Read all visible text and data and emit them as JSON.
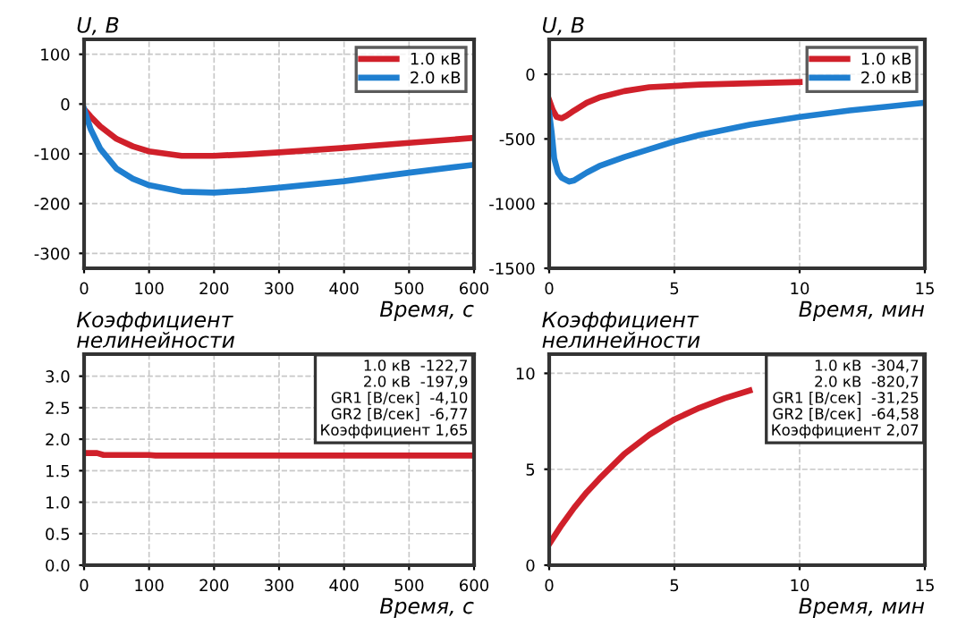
{
  "chart_data": [
    {
      "type": "line",
      "ylabel": "U, В",
      "xlabel": "Время, с",
      "xlim": [
        0,
        600
      ],
      "ylim": [
        -330,
        130
      ],
      "xticks": [
        0,
        100,
        200,
        300,
        400,
        500,
        600
      ],
      "yticks": [
        -300,
        -200,
        -100,
        0,
        100
      ],
      "grid": true,
      "legend": "top right",
      "series": [
        {
          "name": "1.0 кВ",
          "color": "#d0202a",
          "x": [
            0,
            10,
            25,
            50,
            75,
            100,
            150,
            200,
            250,
            300,
            400,
            500,
            600
          ],
          "values": [
            -10,
            -25,
            -45,
            -70,
            -85,
            -95,
            -104,
            -104,
            -101,
            -97,
            -88,
            -78,
            -68
          ]
        },
        {
          "name": "2.0 кВ",
          "color": "#1f7fd0",
          "x": [
            0,
            10,
            25,
            50,
            75,
            100,
            150,
            200,
            250,
            300,
            400,
            500,
            600
          ],
          "values": [
            -10,
            -50,
            -90,
            -130,
            -150,
            -163,
            -176,
            -178,
            -174,
            -168,
            -155,
            -138,
            -122
          ]
        }
      ]
    },
    {
      "type": "line",
      "ylabel": "U, В",
      "xlabel": "Время, мин",
      "xlim": [
        0,
        15
      ],
      "ylim": [
        -1500,
        270
      ],
      "xticks": [
        0,
        5,
        10,
        15
      ],
      "yticks": [
        -1500,
        -1000,
        -500,
        0
      ],
      "grid": true,
      "legend": "top right",
      "series": [
        {
          "name": "1.0 кВ",
          "color": "#d0202a",
          "x": [
            0,
            0.15,
            0.3,
            0.5,
            0.7,
            1,
            1.5,
            2,
            3,
            4,
            5,
            6,
            8,
            10
          ],
          "values": [
            -200,
            -280,
            -330,
            -340,
            -320,
            -280,
            -220,
            -180,
            -130,
            -100,
            -90,
            -80,
            -70,
            -60
          ]
        },
        {
          "name": "2.0 кВ",
          "color": "#1f7fd0",
          "x": [
            0,
            0.1,
            0.2,
            0.35,
            0.5,
            0.8,
            1,
            1.5,
            2,
            3,
            4,
            5,
            6,
            7,
            8,
            10,
            12,
            13.5,
            15
          ],
          "values": [
            -300,
            -450,
            -650,
            -760,
            -800,
            -830,
            -820,
            -760,
            -710,
            -640,
            -580,
            -520,
            -470,
            -430,
            -390,
            -330,
            -280,
            -250,
            -220
          ]
        }
      ]
    },
    {
      "type": "line",
      "ylabel": "Коэффициент\nнелинейности",
      "xlabel": "Время, с",
      "xlim": [
        0,
        600
      ],
      "ylim": [
        0,
        3.35
      ],
      "xticks": [
        0,
        100,
        200,
        300,
        400,
        500,
        600
      ],
      "yticks": [
        {
          "value": 0,
          "label": "0.0"
        },
        0.5,
        {
          "value": 1,
          "label": "1.0"
        },
        1.5,
        {
          "value": 2,
          "label": "2.0"
        },
        2.5,
        {
          "value": 3,
          "label": "3.0"
        }
      ],
      "grid": true,
      "annotations": [
        "1.0 кВ  -122,7",
        "2.0 кВ  -197,9",
        "GR1 [В/сек]  -4,10",
        "GR2 [В/сек]  -6,77",
        "Коэффициент 1,65"
      ],
      "series": [
        {
          "color": "#d0202a",
          "x": [
            0,
            20,
            30,
            60,
            100,
            110,
            200,
            300,
            400,
            500,
            600
          ],
          "values": [
            1.78,
            1.78,
            1.75,
            1.75,
            1.75,
            1.74,
            1.74,
            1.74,
            1.74,
            1.74,
            1.74
          ]
        }
      ]
    },
    {
      "type": "line",
      "ylabel": "Коэффициент\nнелинейности",
      "xlabel": "Время, мин",
      "xlim": [
        0,
        15
      ],
      "ylim": [
        0,
        11
      ],
      "xticks": [
        0,
        5,
        10,
        15
      ],
      "yticks": [
        0,
        5,
        10
      ],
      "grid": true,
      "annotations": [
        "1.0 кВ  -304,7",
        "2.0 кВ  -820,7",
        "GR1 [В/сек]  -31,25",
        "GR2 [В/сек]  -64,58",
        "Коэффициент 2,07"
      ],
      "series": [
        {
          "color": "#d0202a",
          "x": [
            0,
            0.5,
            1,
            1.5,
            2,
            3,
            4,
            5,
            6,
            7,
            8
          ],
          "values": [
            1.1,
            2.1,
            3.0,
            3.8,
            4.5,
            5.8,
            6.8,
            7.6,
            8.2,
            8.7,
            9.1
          ]
        }
      ]
    }
  ]
}
